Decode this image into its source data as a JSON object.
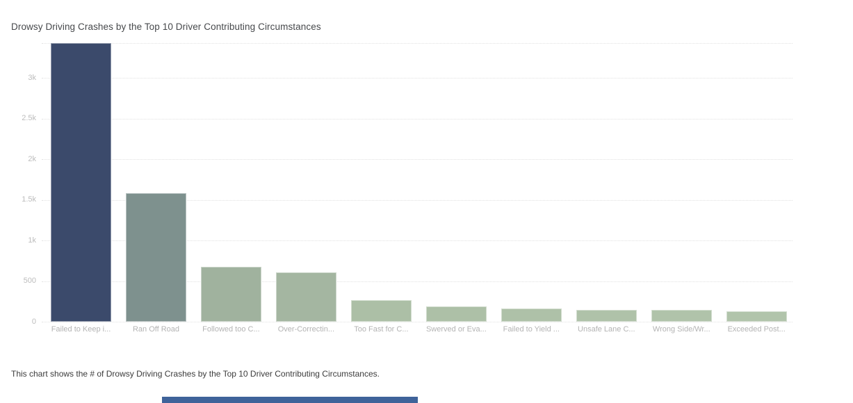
{
  "page": {
    "background": "#ffffff",
    "caption": "This chart shows the # of Drowsy Driving Crashes by the Top 10 Driver Contributing Circumstances."
  },
  "chart_data": {
    "type": "bar",
    "title": "Drowsy Driving Crashes by the Top 10 Driver Contributing Circumstances",
    "categories": [
      "Failed to Keep i...",
      "Ran Off Road",
      "Followed too C...",
      "Over-Correctin...",
      "Too Fast for C...",
      "Swerved or Eva...",
      "Failed to Yield ...",
      "Unsafe Lane C...",
      "Wrong Side/Wr...",
      "Exceeded Post..."
    ],
    "values": [
      3430,
      1580,
      680,
      610,
      265,
      185,
      160,
      150,
      145,
      130
    ],
    "bar_colors": [
      "#3b4a6b",
      "#7e918e",
      "#a0b29e",
      "#a4b6a1",
      "#acbfa6",
      "#adc0a7",
      "#aec1a8",
      "#afc2a9",
      "#b0c3aa",
      "#b1c4ab"
    ],
    "xlabel": "",
    "ylabel": "",
    "ylim": [
      0,
      3435
    ],
    "yticks": [
      {
        "value": 0,
        "label": "0"
      },
      {
        "value": 500,
        "label": "500"
      },
      {
        "value": 1000,
        "label": "1k"
      },
      {
        "value": 1500,
        "label": "1.5k"
      },
      {
        "value": 2000,
        "label": "2k"
      },
      {
        "value": 2500,
        "label": "2.5k"
      },
      {
        "value": 3000,
        "label": "3k"
      }
    ],
    "grid": "horizontal-dotted",
    "legend": "none"
  },
  "footer": {
    "partial_bar_color": "#3f639a"
  }
}
